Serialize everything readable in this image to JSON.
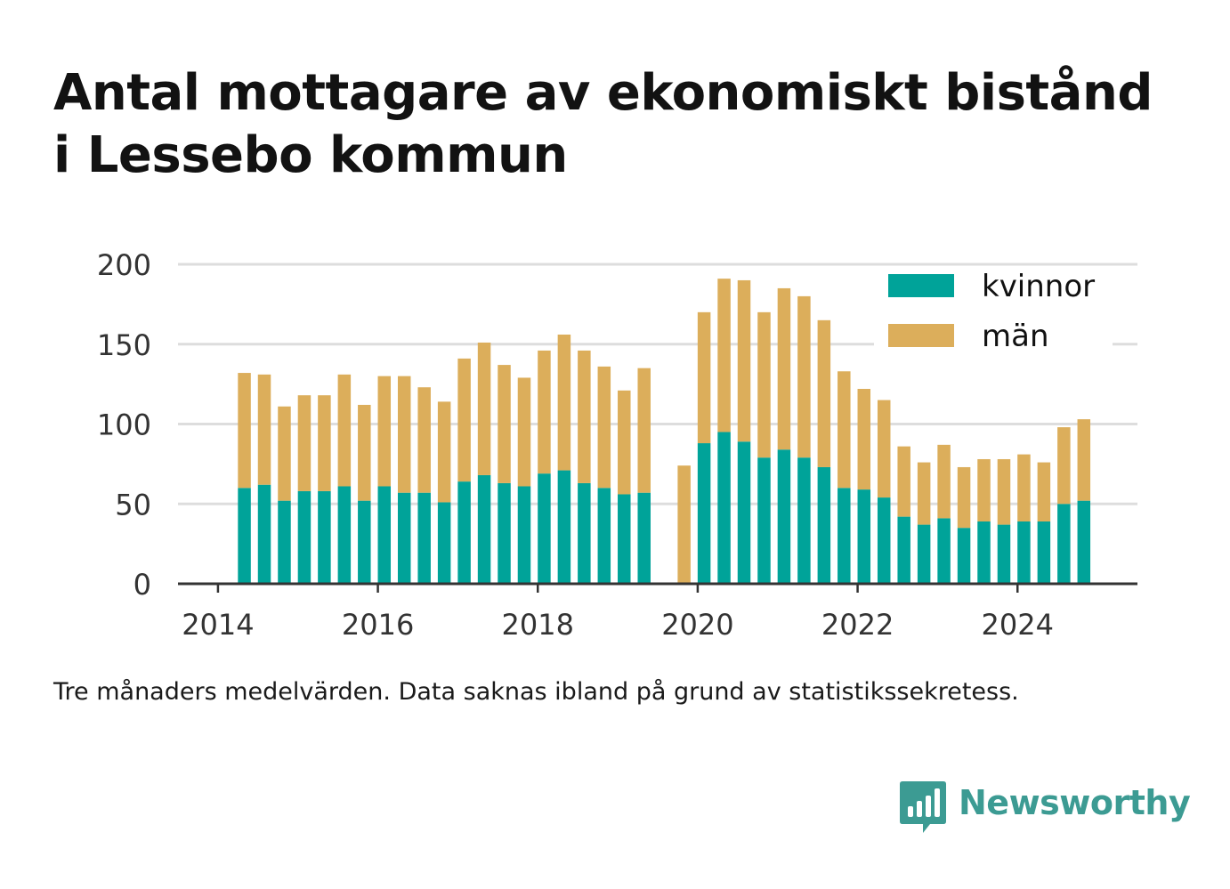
{
  "title_lines": [
    "Antal mottagare av ekonomiskt bistånd",
    "i Lessebo kommun"
  ],
  "note": "Tre månaders medelvärden. Data saknas ibland på grund av statistikssekretess.",
  "brand": {
    "name": "Newsworthy",
    "icon": "bar-chart-speech-bubble-icon"
  },
  "colors": {
    "kvinnor": "#00a399",
    "man": "#dcae5b",
    "grid": "#dddddd",
    "axis": "#333333"
  },
  "chart_data": {
    "type": "bar",
    "stacked": true,
    "x_tick_labels": [
      "2014",
      "2016",
      "2018",
      "2020",
      "2022",
      "2024"
    ],
    "x_tick_values": [
      2014,
      2016,
      2018,
      2020,
      2022,
      2024
    ],
    "y_ticks": [
      0,
      50,
      100,
      150,
      200
    ],
    "ylim": [
      0,
      200
    ],
    "xlim": [
      2013.5,
      2025.5
    ],
    "grid": true,
    "legend_position": "top-right",
    "x": [
      2014.33,
      2014.58,
      2014.83,
      2015.08,
      2015.33,
      2015.58,
      2015.83,
      2016.08,
      2016.33,
      2016.58,
      2016.83,
      2017.08,
      2017.33,
      2017.58,
      2017.83,
      2018.08,
      2018.33,
      2018.58,
      2018.83,
      2019.08,
      2019.33,
      2019.83,
      2020.08,
      2020.33,
      2020.58,
      2020.83,
      2021.08,
      2021.33,
      2021.58,
      2021.83,
      2022.08,
      2022.33,
      2022.58,
      2022.83,
      2023.08,
      2023.33,
      2023.58,
      2023.83,
      2024.08,
      2024.33,
      2024.58,
      2024.83
    ],
    "series": [
      {
        "name": "kvinnor",
        "values": [
          60,
          62,
          52,
          58,
          58,
          61,
          52,
          61,
          57,
          57,
          51,
          64,
          68,
          63,
          61,
          69,
          71,
          63,
          60,
          56,
          57,
          null,
          88,
          95,
          89,
          79,
          84,
          79,
          73,
          60,
          59,
          54,
          42,
          37,
          41,
          35,
          39,
          37,
          39,
          39,
          50,
          52
        ]
      },
      {
        "name": "män",
        "values": [
          72,
          69,
          59,
          60,
          60,
          70,
          60,
          69,
          73,
          66,
          63,
          77,
          83,
          74,
          68,
          77,
          85,
          83,
          76,
          65,
          78,
          74,
          82,
          96,
          101,
          91,
          101,
          101,
          92,
          73,
          63,
          61,
          44,
          39,
          46,
          38,
          39,
          41,
          42,
          37,
          48,
          51
        ]
      }
    ]
  }
}
